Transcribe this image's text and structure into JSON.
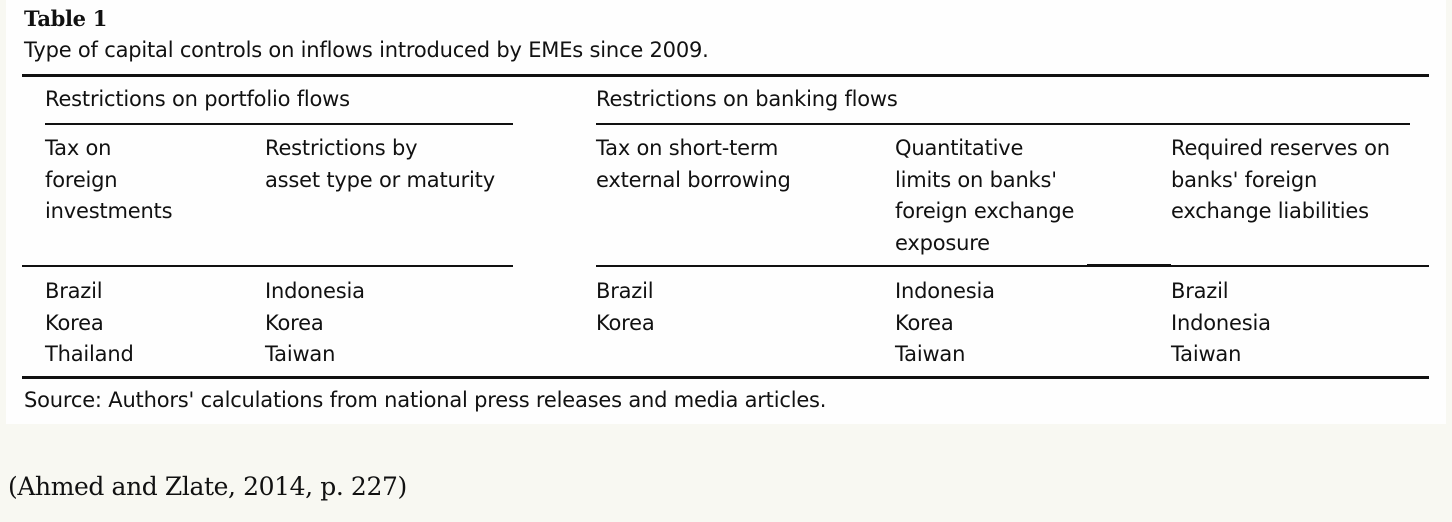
{
  "table": {
    "label": "Table 1",
    "caption": "Type of capital controls on inflows introduced by EMEs since 2009.",
    "groups": [
      "Restrictions on portfolio flows",
      "Restrictions on banking flows"
    ],
    "columns": [
      {
        "header": [
          "Tax on",
          "foreign",
          "investments"
        ],
        "countries": [
          "Brazil",
          "Korea",
          "Thailand"
        ]
      },
      {
        "header": [
          "Restrictions by",
          "asset type or maturity"
        ],
        "countries": [
          "Indonesia",
          "Korea",
          "Taiwan"
        ]
      },
      {
        "header": [
          "Tax on short-term",
          "external borrowing"
        ],
        "countries": [
          "Brazil",
          "Korea"
        ]
      },
      {
        "header": [
          "Quantitative",
          "limits on banks'",
          "foreign exchange",
          "exposure"
        ],
        "countries": [
          "Indonesia",
          "Korea",
          "Taiwan"
        ]
      },
      {
        "header": [
          "Required reserves on",
          "banks' foreign",
          "exchange liabilities"
        ],
        "countries": [
          "Brazil",
          "Indonesia",
          "Taiwan"
        ]
      }
    ],
    "source": "Source: Authors' calculations from national press releases and media articles."
  },
  "citation": "(Ahmed and Zlate, 2014, p. 227)"
}
